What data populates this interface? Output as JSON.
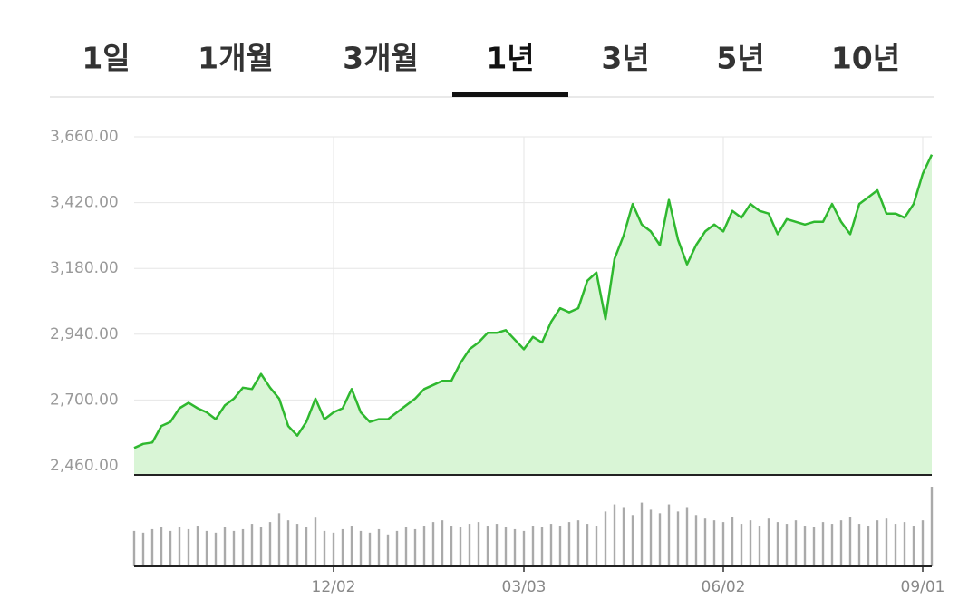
{
  "tabs": [
    "1일",
    "1개월",
    "3개월",
    "1년",
    "3년",
    "5년",
    "10년"
  ],
  "selected_tab": 3,
  "chart_data": [
    {
      "type": "area",
      "color": "#2fb82f",
      "fill": "#d9f5d6",
      "categories": [
        null,
        null,
        null,
        null,
        null,
        null,
        null,
        null,
        null,
        null,
        null,
        null,
        null,
        null,
        null,
        null,
        null,
        null,
        null,
        null,
        null,
        null,
        "12/02",
        null,
        null,
        null,
        null,
        null,
        null,
        null,
        null,
        null,
        null,
        null,
        null,
        null,
        null,
        null,
        null,
        null,
        null,
        null,
        null,
        "03/03",
        null,
        null,
        null,
        null,
        null,
        null,
        null,
        null,
        null,
        null,
        null,
        null,
        null,
        null,
        null,
        null,
        null,
        null,
        null,
        null,
        null,
        "06/02",
        null,
        null,
        null,
        null,
        null,
        null,
        null,
        null,
        null,
        null,
        null,
        null,
        null,
        null,
        null,
        null,
        null,
        null,
        null,
        null,
        null,
        "09/01",
        null
      ],
      "values": [
        2525,
        2540,
        2545,
        2605,
        2620,
        2670,
        2690,
        2670,
        2655,
        2630,
        2680,
        2705,
        2745,
        2740,
        2795,
        2745,
        2705,
        2605,
        2570,
        2620,
        2705,
        2630,
        2655,
        2670,
        2740,
        2655,
        2620,
        2630,
        2630,
        2655,
        2680,
        2705,
        2740,
        2755,
        2770,
        2770,
        2835,
        2885,
        2910,
        2945,
        2945,
        2955,
        2920,
        2885,
        2930,
        2910,
        2985,
        3035,
        3020,
        3035,
        3135,
        3165,
        2995,
        3215,
        3300,
        3415,
        3340,
        3315,
        3265,
        3430,
        3285,
        3195,
        3265,
        3315,
        3340,
        3315,
        3390,
        3365,
        3415,
        3390,
        3380,
        3305,
        3360,
        3350,
        3340,
        3350,
        3350,
        3415,
        3350,
        3305,
        3415,
        3440,
        3465,
        3380,
        3380,
        3365,
        3415,
        3525,
        3595
      ],
      "ylim": [
        2460,
        3660
      ],
      "yticks": [
        {
          "value": 3660,
          "label": "3,660.00"
        },
        {
          "value": 3420,
          "label": "3,420.00"
        },
        {
          "value": 3180,
          "label": "3,180.00"
        },
        {
          "value": 2940,
          "label": "2,940.00"
        },
        {
          "value": 2700,
          "label": "2,700.00"
        },
        {
          "value": 2460,
          "label": "2,460.00"
        }
      ],
      "grid": true
    },
    {
      "type": "bar",
      "color": "#aaaaaa",
      "values": [
        40,
        38,
        42,
        45,
        40,
        44,
        42,
        46,
        40,
        38,
        44,
        40,
        42,
        48,
        44,
        50,
        60,
        52,
        48,
        45,
        55,
        40,
        38,
        42,
        46,
        40,
        38,
        42,
        36,
        40,
        44,
        42,
        46,
        50,
        52,
        46,
        44,
        48,
        50,
        46,
        48,
        44,
        42,
        40,
        46,
        44,
        48,
        46,
        50,
        52,
        48,
        46,
        62,
        70,
        66,
        58,
        72,
        64,
        60,
        70,
        62,
        66,
        58,
        54,
        52,
        50,
        56,
        48,
        52,
        46,
        54,
        50,
        48,
        52,
        46,
        44,
        50,
        48,
        52,
        56,
        48,
        46,
        52,
        54,
        48,
        50,
        46,
        52,
        90
      ]
    }
  ]
}
